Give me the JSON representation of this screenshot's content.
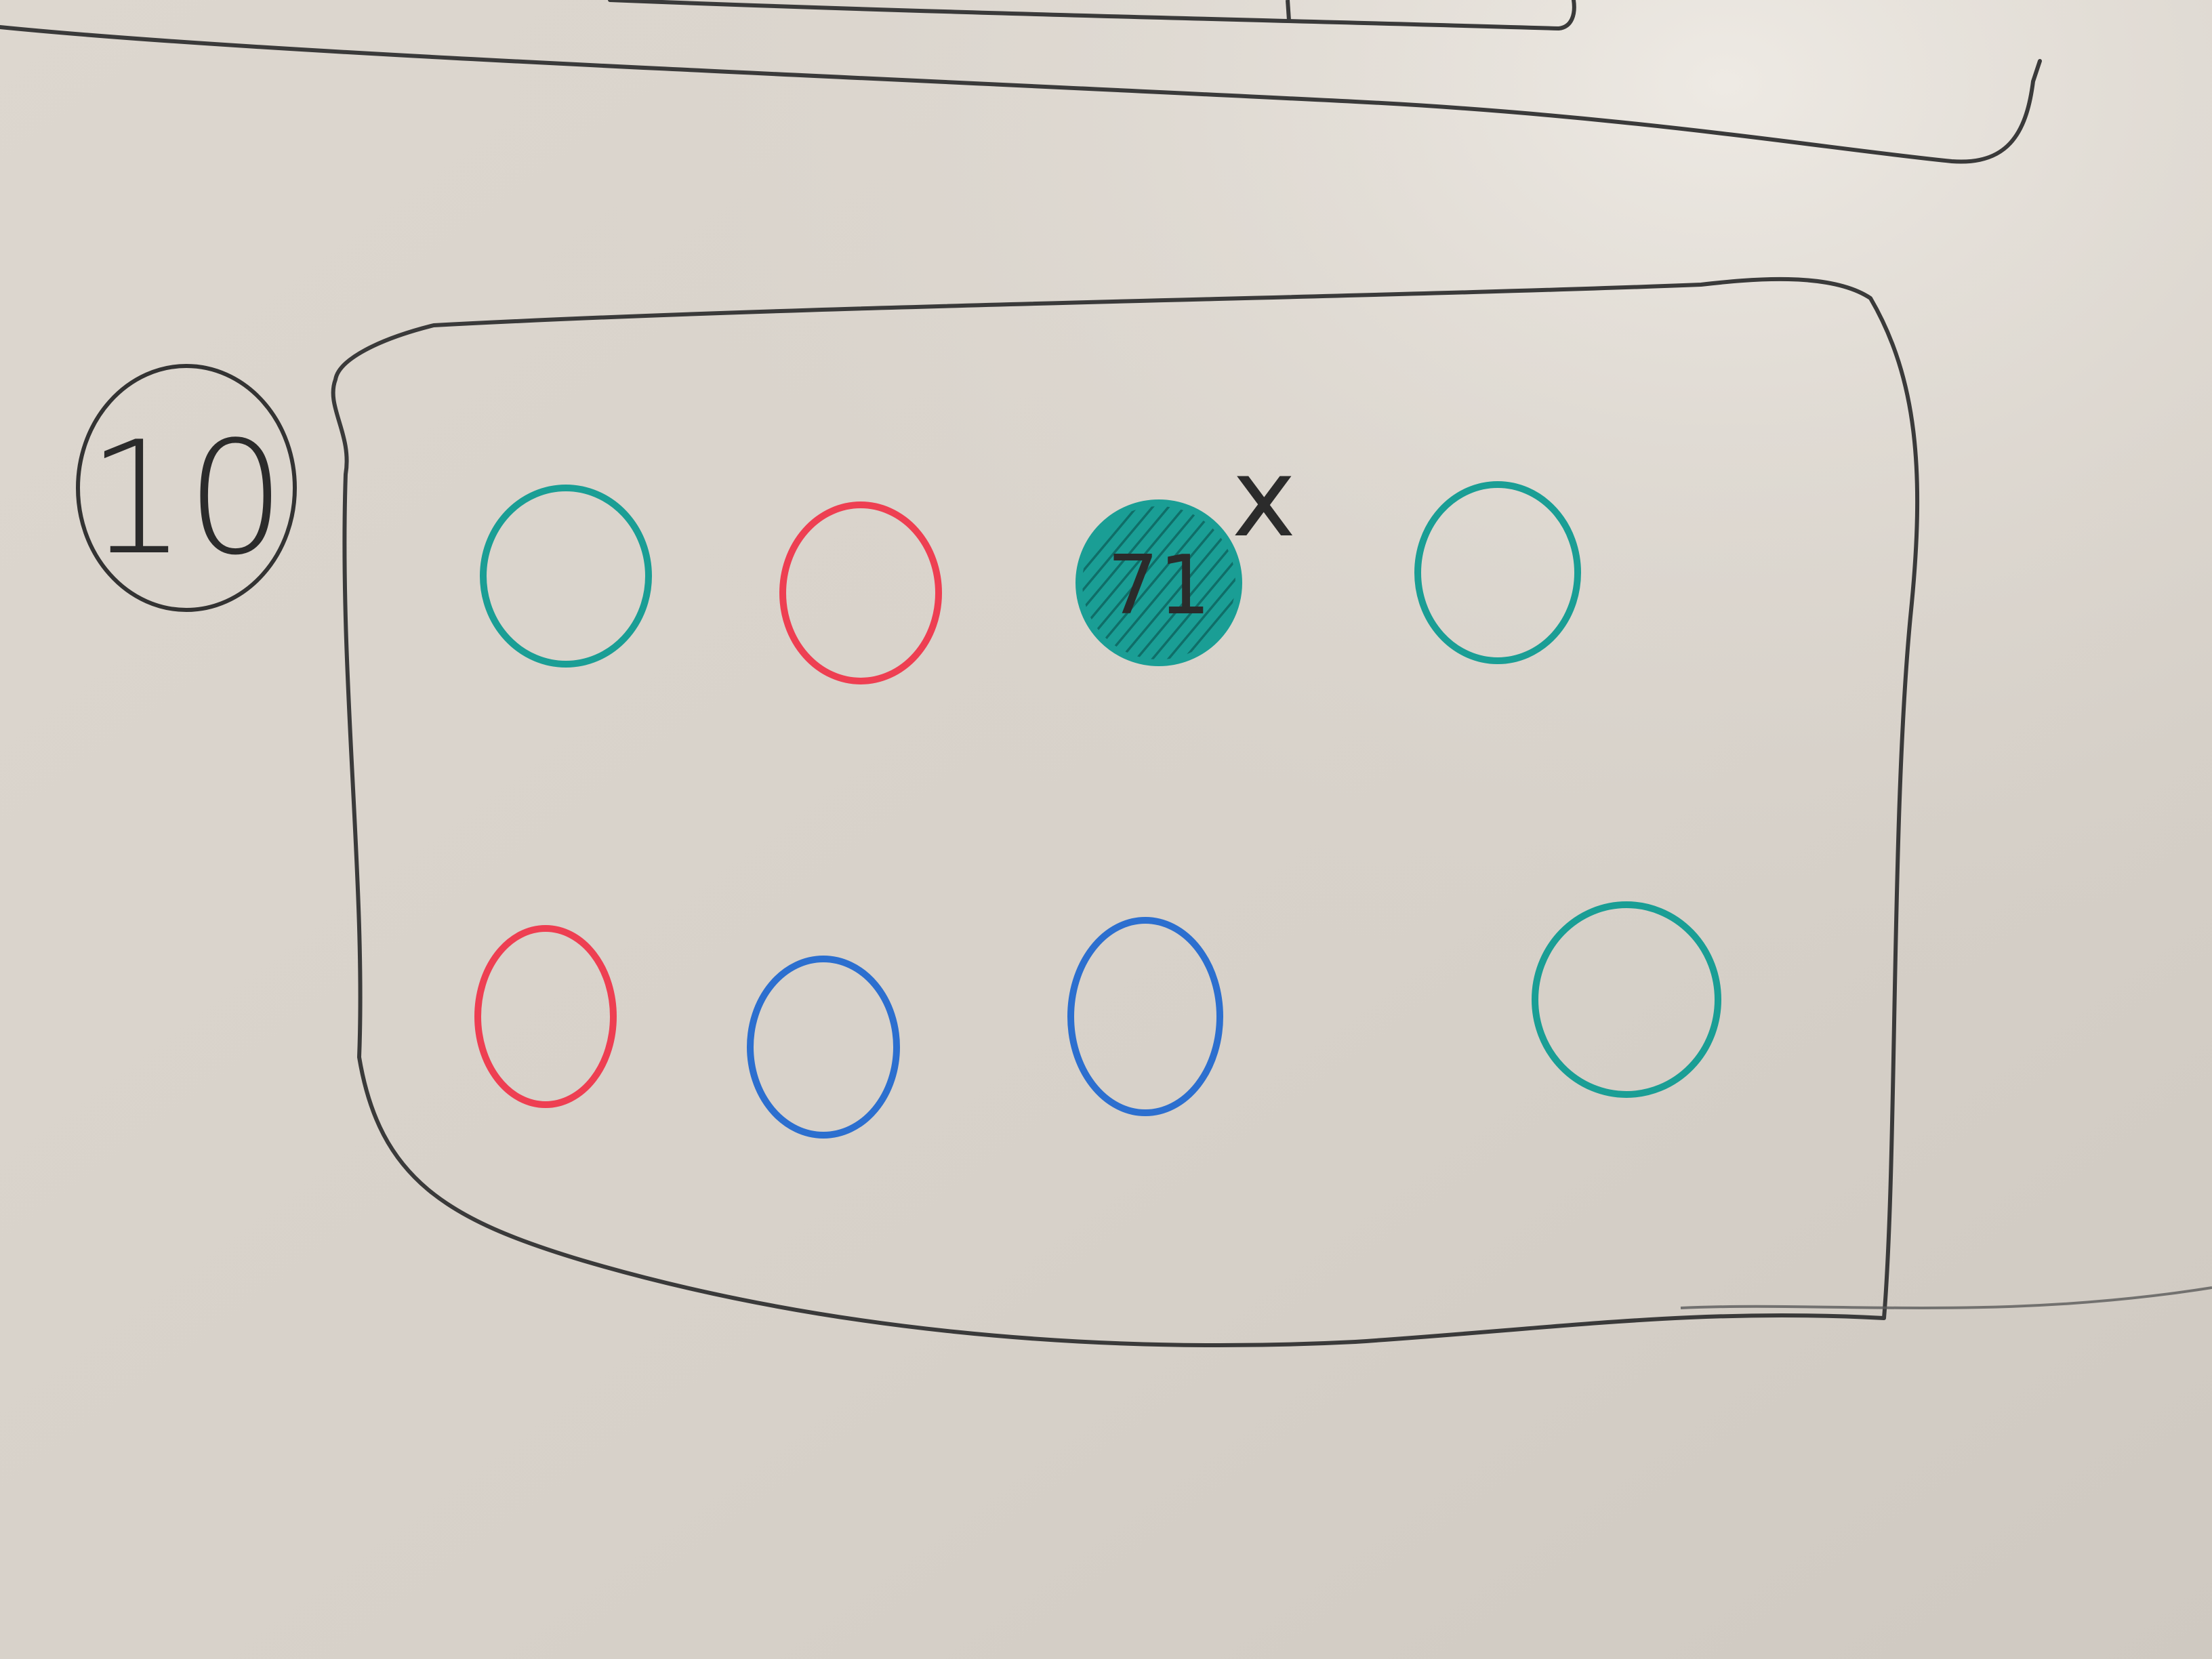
{
  "board": {
    "number_label": "10",
    "number_label_circled": true,
    "highlighted_circle_text": "71",
    "mark_text": "x"
  },
  "colors": {
    "board": "#dcd6ce",
    "outline": "#3a3a3a",
    "teal": "#1a9e95",
    "red": "#ee3f52",
    "blue": "#2c6fcf"
  },
  "circles": [
    {
      "row": 1,
      "col": 1,
      "color": "teal",
      "filled": false
    },
    {
      "row": 1,
      "col": 2,
      "color": "red",
      "filled": false
    },
    {
      "row": 1,
      "col": 3,
      "color": "teal",
      "filled": true
    },
    {
      "row": 1,
      "col": 4,
      "color": "teal",
      "filled": false
    },
    {
      "row": 2,
      "col": 1,
      "color": "red",
      "filled": false
    },
    {
      "row": 2,
      "col": 2,
      "color": "blue",
      "filled": false
    },
    {
      "row": 2,
      "col": 3,
      "color": "blue",
      "filled": false
    },
    {
      "row": 2,
      "col": 4,
      "color": "teal",
      "filled": false
    }
  ]
}
